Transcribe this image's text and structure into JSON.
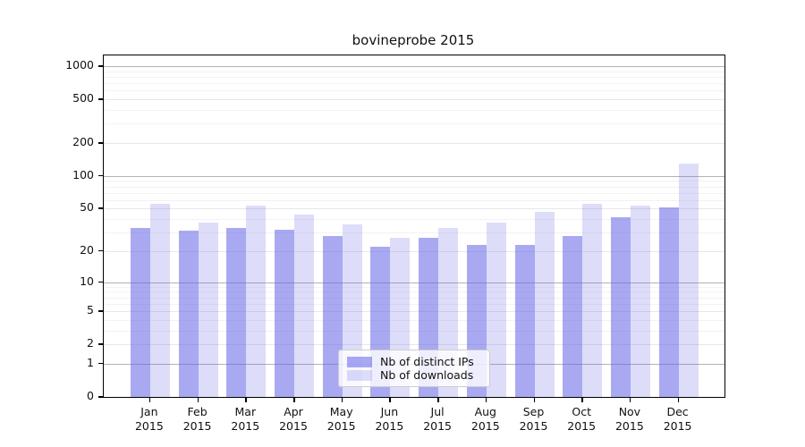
{
  "title": "bovineprobe 2015",
  "chart_data": {
    "type": "bar",
    "title": "bovineprobe 2015",
    "categories": [
      "Jan",
      "Feb",
      "Mar",
      "Apr",
      "May",
      "Jun",
      "Jul",
      "Aug",
      "Sep",
      "Oct",
      "Nov",
      "Dec"
    ],
    "x_year_label": "2015",
    "series": [
      {
        "name": "Nb of distinct IPs",
        "key": "ips",
        "values": [
          33,
          31,
          33,
          32,
          28,
          22,
          27,
          23,
          23,
          28,
          42,
          51
        ],
        "color": "#a8a8f2",
        "rgba": "rgba(98,98,232,0.55)"
      },
      {
        "name": "Nb of downloads",
        "key": "downloads",
        "values": [
          56,
          37,
          53,
          44,
          36,
          27,
          33,
          37,
          47,
          55,
          53,
          131
        ],
        "color": "#dcdcf7",
        "rgba": "rgba(98,98,232,0.22)"
      }
    ],
    "xlabel": "",
    "ylabel": "",
    "yscale": "log1p",
    "yticks": [
      0,
      1,
      2,
      5,
      10,
      20,
      50,
      100,
      200,
      500,
      1000
    ],
    "ytick_labels": [
      "0",
      "1",
      "2",
      "5",
      "10",
      "20",
      "50",
      "100",
      "200",
      "500",
      "1000"
    ],
    "minor_gridlines": [
      3,
      4,
      6,
      7,
      8,
      9,
      30,
      40,
      60,
      70,
      80,
      90,
      300,
      400,
      600,
      700,
      800,
      900
    ],
    "major_gridlines": [
      1,
      10,
      100,
      1000
    ],
    "ylim": [
      0,
      1150
    ],
    "grid": true,
    "legend_position": "lower center",
    "colors": {
      "axis": "#000000",
      "major_grid": "#b3b3b3",
      "minor_grid": "#f2f2f2",
      "text": "#111111"
    }
  }
}
